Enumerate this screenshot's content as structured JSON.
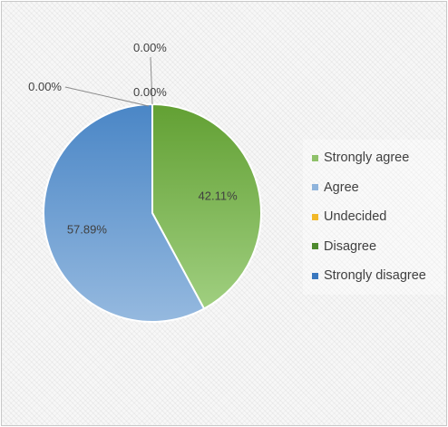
{
  "chart_data": {
    "type": "pie",
    "title": "",
    "categories": [
      "Strongly agree",
      "Agree",
      "Undecided",
      "Disagree",
      "Strongly disagree"
    ],
    "values": [
      42.11,
      57.89,
      0.0,
      0.0,
      0.0
    ],
    "value_labels": [
      "42.11%",
      "57.89%",
      "0.00%",
      "0.00%",
      "0.00%"
    ],
    "colors": {
      "Strongly agree": "#8fc16a",
      "Agree": "#8fb4dc",
      "Undecided": "#f2b828",
      "Disagree": "#4e8a2e",
      "Strongly disagree": "#3a78bf"
    },
    "legend_position": "right",
    "start_angle": "top, clockwise"
  }
}
